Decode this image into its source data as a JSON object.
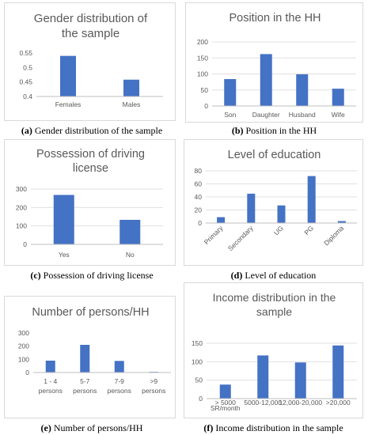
{
  "chart_data": [
    {
      "type": "bar",
      "title": "Gender distribution of the sample",
      "title_lines": [
        "Gender distribution of",
        "the sample"
      ],
      "categories": [
        "Females",
        "Males"
      ],
      "values": [
        0.54,
        0.458
      ],
      "ylim": [
        0.4,
        0.55
      ],
      "yticks": [
        "0.4",
        "0.45",
        "0.5",
        "0.55"
      ],
      "grid": false,
      "caption_label": "(a)",
      "caption_text": " Gender distribution of the sample"
    },
    {
      "type": "bar",
      "title": "Position in the HH",
      "title_lines": [
        "Position in the HH"
      ],
      "categories": [
        "Son",
        "Daughter",
        "Husband",
        "Wife"
      ],
      "values": [
        84,
        162,
        99,
        54
      ],
      "ylim": [
        0,
        200
      ],
      "yticks": [
        "0",
        "50",
        "100",
        "150",
        "200"
      ],
      "grid": true,
      "caption_label": "(b)",
      "caption_text": " Position in the HH"
    },
    {
      "type": "bar",
      "title": "Possession of driving license",
      "title_lines": [
        "Possession of driving",
        "license"
      ],
      "categories": [
        "Yes",
        "No"
      ],
      "values": [
        268,
        133
      ],
      "ylim": [
        0,
        300
      ],
      "yticks": [
        "0",
        "100",
        "200",
        "300"
      ],
      "grid": true,
      "caption_label": "(c)",
      "caption_text": " Possession of driving license"
    },
    {
      "type": "bar",
      "title": "Level of education",
      "title_lines": [
        "Level of education"
      ],
      "categories": [
        "Primary",
        "Secondary",
        "UG",
        "PG",
        "Diploma"
      ],
      "values": [
        9,
        45,
        27,
        72,
        3
      ],
      "ylim": [
        0,
        80
      ],
      "yticks": [
        "0",
        "20",
        "40",
        "60",
        "80"
      ],
      "grid": true,
      "caption_label": "(d)",
      "caption_text": " Level of education"
    },
    {
      "type": "bar",
      "title": "Number of persons/HH",
      "title_lines": [
        "Number of persons/HH"
      ],
      "categories": [
        "1 - 4 persons",
        "5-7 persons",
        "7-9 persons",
        ">9 persons"
      ],
      "category_lines": [
        [
          "1 - 4",
          "persons"
        ],
        [
          "5-7",
          "persons"
        ],
        [
          "7-9",
          "persons"
        ],
        [
          ">9",
          "persons"
        ]
      ],
      "values": [
        90,
        210,
        88,
        5
      ],
      "ylim": [
        0,
        300
      ],
      "yticks": [
        "0",
        "100",
        "200",
        "300"
      ],
      "grid": false,
      "caption_label": "(e)",
      "caption_text": " Number of persons/HH"
    },
    {
      "type": "bar",
      "title": "Income distribution in the sample",
      "title_lines": [
        "Income distribution in the",
        "sample"
      ],
      "categories": [
        "> 5000 SR/month",
        "5000-12,000",
        "12,000-20,000",
        ">20,000"
      ],
      "category_lines": [
        [
          "> 5000",
          "SR/month"
        ],
        [
          "5000-12,000"
        ],
        [
          "12,000-20,000"
        ],
        [
          ">20,000"
        ]
      ],
      "values": [
        38,
        117,
        98,
        144
      ],
      "ylim": [
        0,
        150
      ],
      "yticks": [
        "0",
        "50",
        "100",
        "150"
      ],
      "grid": true,
      "caption_label": "(f)",
      "caption_text": " Income distribution in the sample"
    }
  ]
}
